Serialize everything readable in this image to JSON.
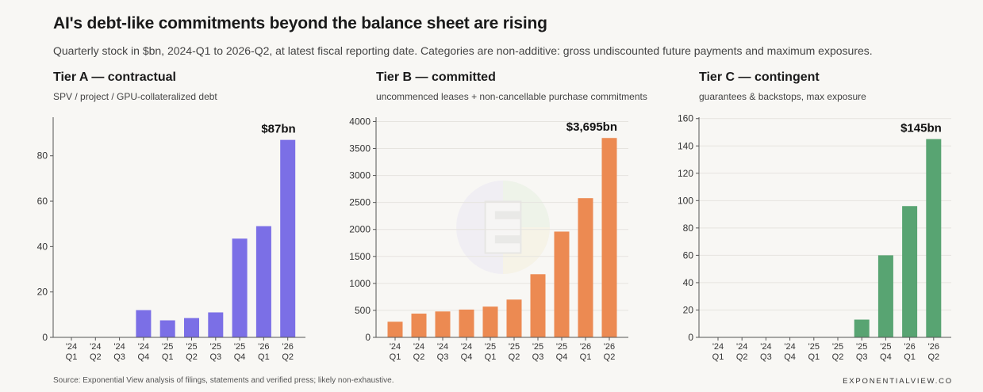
{
  "title": "AI's debt-like commitments beyond the balance sheet are rising",
  "subtitle": "Quarterly stock in $bn, 2024-Q1 to 2026-Q2, at latest fiscal reporting date. Categories are non-additive: gross undiscounted future payments and maximum exposures.",
  "source": "Source: Exponential View analysis of filings, statements and verified press; likely non-exhaustive.",
  "brand": "EXPONENTIALVIEW.CO",
  "chart_data": [
    {
      "type": "bar",
      "title": "Tier A — contractual",
      "subtitle": "SPV / project / GPU-collateralized debt",
      "color": "#7b6fe6",
      "callout": "$87bn",
      "categories": [
        [
          "'24",
          "Q1"
        ],
        [
          "'24",
          "Q2"
        ],
        [
          "'24",
          "Q3"
        ],
        [
          "'24",
          "Q4"
        ],
        [
          "'25",
          "Q1"
        ],
        [
          "'25",
          "Q2"
        ],
        [
          "'25",
          "Q3"
        ],
        [
          "'25",
          "Q4"
        ],
        [
          "'26",
          "Q1"
        ],
        [
          "'26",
          "Q2"
        ]
      ],
      "values": [
        0,
        0,
        0,
        12,
        7.5,
        8.5,
        11,
        43.5,
        49,
        87
      ],
      "ylim": [
        0,
        97
      ],
      "yticks": [
        "0",
        "20",
        "40",
        "60",
        "80"
      ],
      "grid": false
    },
    {
      "type": "bar",
      "title": "Tier B — committed",
      "subtitle": "uncommenced leases + non-cancellable purchase commitments",
      "color": "#ec8a52",
      "callout": "$3,695bn",
      "categories": [
        [
          "'24",
          "Q1"
        ],
        [
          "'24",
          "Q2"
        ],
        [
          "'24",
          "Q3"
        ],
        [
          "'24",
          "Q4"
        ],
        [
          "'25",
          "Q1"
        ],
        [
          "'25",
          "Q2"
        ],
        [
          "'25",
          "Q3"
        ],
        [
          "'25",
          "Q4"
        ],
        [
          "'26",
          "Q1"
        ],
        [
          "'26",
          "Q2"
        ]
      ],
      "values": [
        290,
        440,
        480,
        515,
        570,
        700,
        1170,
        1960,
        2580,
        3695
      ],
      "ylim": [
        0,
        4080
      ],
      "yticks": [
        "0",
        "500",
        "1000",
        "1500",
        "2000",
        "2500",
        "3000",
        "3500",
        "4000"
      ],
      "grid": true
    },
    {
      "type": "bar",
      "title": "Tier C — contingent",
      "subtitle": "guarantees & backstops, max exposure",
      "color": "#58a472",
      "callout": "$145bn",
      "categories": [
        [
          "'24",
          "Q1"
        ],
        [
          "'24",
          "Q2"
        ],
        [
          "'24",
          "Q3"
        ],
        [
          "'24",
          "Q4"
        ],
        [
          "'25",
          "Q1"
        ],
        [
          "'25",
          "Q2"
        ],
        [
          "'25",
          "Q3"
        ],
        [
          "'25",
          "Q4"
        ],
        [
          "'26",
          "Q1"
        ],
        [
          "'26",
          "Q2"
        ]
      ],
      "values": [
        0,
        0,
        0,
        0,
        0,
        0,
        13,
        60,
        96,
        145
      ],
      "ylim": [
        0,
        161
      ],
      "yticks": [
        "0",
        "20",
        "40",
        "60",
        "80",
        "100",
        "120",
        "140",
        "160"
      ],
      "grid": true
    }
  ]
}
